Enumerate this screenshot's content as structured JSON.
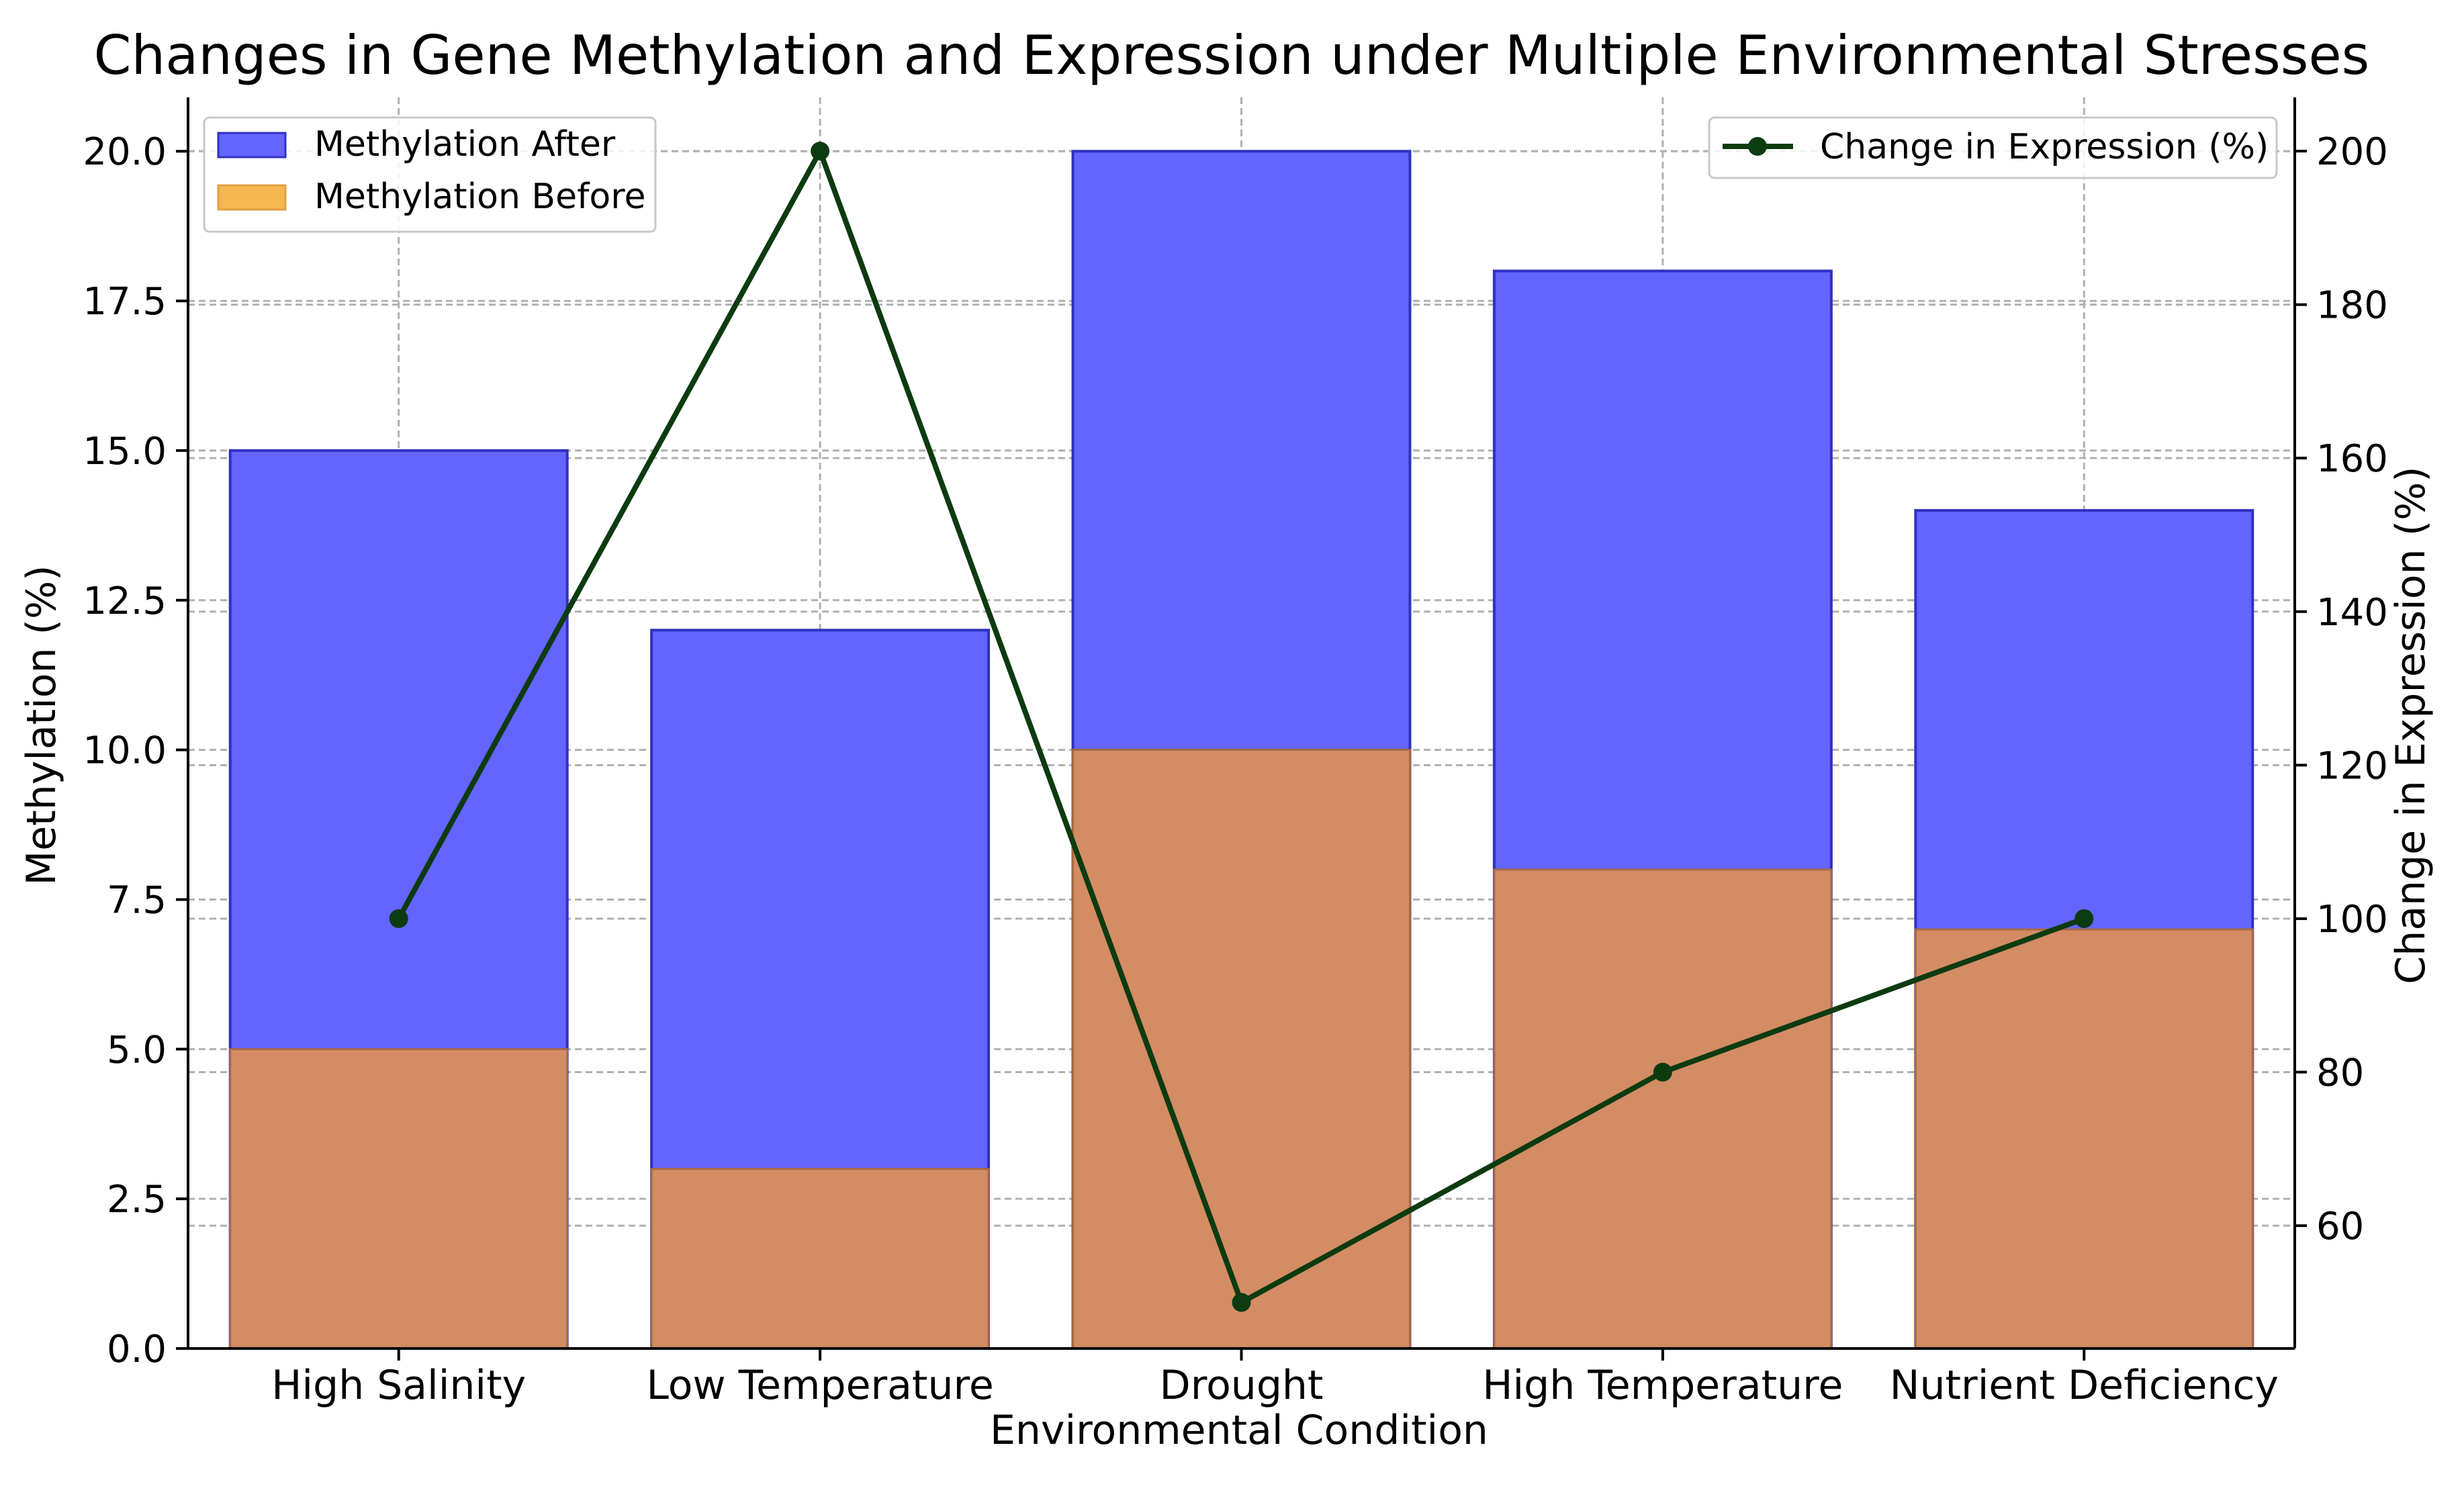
{
  "chart_data": {
    "type": "bar",
    "title": "Changes in Gene Methylation and Expression under Multiple Environmental Stresses",
    "xlabel": "Environmental Condition",
    "ylabel": "Methylation (%)",
    "y2label": "Change in Expression (%)",
    "categories": [
      "High Salinity",
      "Low Temperature",
      "Drought",
      "High Temperature",
      "Nutrient Deficiency"
    ],
    "ylim": [
      0,
      20.9
    ],
    "y2lim": [
      44,
      207
    ],
    "yticks": [
      "0.0",
      "2.5",
      "5.0",
      "7.5",
      "10.0",
      "12.5",
      "15.0",
      "17.5",
      "20.0"
    ],
    "y2ticks": [
      "60",
      "80",
      "100",
      "120",
      "140",
      "160",
      "180",
      "200"
    ],
    "grid": true,
    "series": [
      {
        "name": "Methylation After",
        "type": "bar",
        "axis": "left",
        "color": "#6464ff",
        "values": [
          15,
          12,
          20,
          18,
          14
        ]
      },
      {
        "name": "Methylation Before",
        "type": "bar",
        "axis": "left",
        "color": "#d48c64",
        "legend_color": "#f5b850",
        "values": [
          5,
          3,
          10,
          8,
          7
        ]
      },
      {
        "name": "Change in Expression (%)",
        "type": "line",
        "axis": "right",
        "color": "#0d3b10",
        "values": [
          100,
          200,
          50,
          80,
          100
        ]
      }
    ],
    "legends": [
      {
        "position": "upper-left",
        "entries": [
          "Methylation After",
          "Methylation Before"
        ]
      },
      {
        "position": "upper-right",
        "entries": [
          "Change in Expression (%)"
        ]
      }
    ]
  }
}
